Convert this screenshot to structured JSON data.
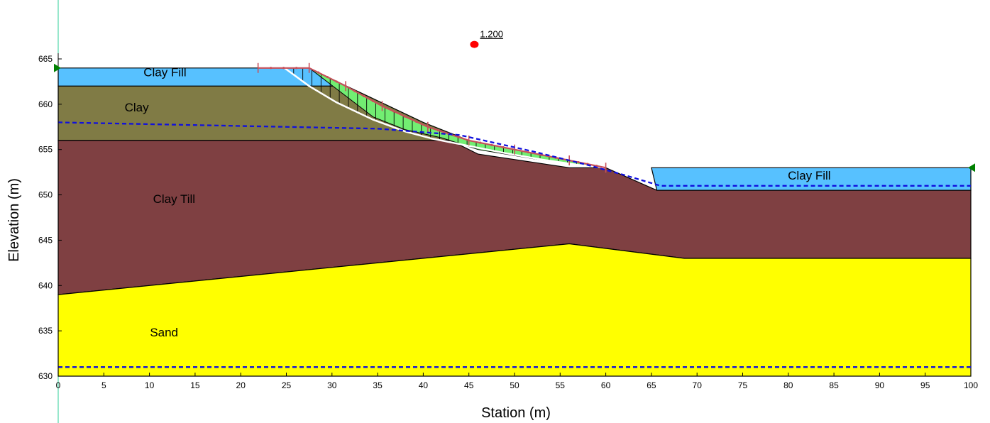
{
  "chart_data": {
    "type": "slope-stability-section",
    "xlabel": "Station (m)",
    "ylabel": "Elevation (m)",
    "xlim": [
      0,
      100
    ],
    "ylim": [
      630,
      665
    ],
    "x_ticks": [
      0,
      5,
      10,
      15,
      20,
      25,
      30,
      35,
      40,
      45,
      50,
      55,
      60,
      65,
      70,
      75,
      80,
      85,
      90,
      95,
      100
    ],
    "y_ticks": [
      630,
      635,
      640,
      645,
      650,
      655,
      660,
      665
    ],
    "factor_of_safety": {
      "label": "1.200",
      "x": 45.6,
      "y": 666.6,
      "color": "#ff0000"
    },
    "layers": [
      {
        "name": "Clay Fill",
        "color": "#57c1ff",
        "label_at": [
          11.7,
          663.1
        ],
        "polygon": [
          [
            0,
            664
          ],
          [
            27.5,
            664
          ],
          [
            31.6,
            662
          ],
          [
            0,
            662
          ]
        ]
      },
      {
        "name": "Clay Fill",
        "color": "#57c1ff",
        "label_at": [
          82.3,
          651.7
        ],
        "polygon": [
          [
            65,
            653
          ],
          [
            100,
            653
          ],
          [
            100,
            650.5
          ],
          [
            65.6,
            650.5
          ]
        ]
      },
      {
        "name": "Clay",
        "color": "#807b45",
        "label_at": [
          8.6,
          659.2
        ],
        "polygon": [
          [
            0,
            662
          ],
          [
            31.6,
            662
          ],
          [
            40,
            658
          ],
          [
            45,
            656
          ],
          [
            43,
            656
          ],
          [
            0,
            656
          ]
        ]
      },
      {
        "name": "Clay Till",
        "color": "#7f4042",
        "label_at": [
          12.7,
          649.1
        ],
        "polygon": [
          [
            0,
            656
          ],
          [
            43,
            656
          ],
          [
            46,
            654.5
          ],
          [
            56,
            653
          ],
          [
            60,
            653
          ],
          [
            65.6,
            650.5
          ],
          [
            100,
            650.5
          ],
          [
            100,
            643
          ],
          [
            68.6,
            643
          ],
          [
            56,
            644.6
          ],
          [
            0,
            639
          ]
        ]
      },
      {
        "name": "Sand",
        "color": "#ffff00",
        "label_at": [
          11.6,
          634.4
        ],
        "polygon": [
          [
            0,
            639
          ],
          [
            56,
            644.6
          ],
          [
            68.6,
            643
          ],
          [
            100,
            643
          ],
          [
            100,
            630
          ],
          [
            0,
            630
          ]
        ]
      }
    ],
    "sliding_mass": {
      "color": "#72ee72",
      "polygon": [
        [
          27.5,
          664
        ],
        [
          31.5,
          662
        ],
        [
          35.5,
          659.8
        ],
        [
          40.5,
          657.5
        ],
        [
          45,
          656
        ],
        [
          50,
          655
        ],
        [
          56,
          653.8
        ],
        [
          60,
          653
        ],
        [
          57,
          653.3
        ],
        [
          52,
          654
        ],
        [
          46,
          655
        ],
        [
          42,
          656.3
        ],
        [
          38,
          657.2
        ],
        [
          34.5,
          658.6
        ]
      ]
    },
    "slip_surface": {
      "color": "#ffffff",
      "points": [
        [
          24.8,
          664
        ],
        [
          27.5,
          662
        ],
        [
          30.5,
          660.2
        ],
        [
          34.5,
          658.3
        ],
        [
          38,
          657
        ],
        [
          41,
          656.2
        ],
        [
          44.5,
          655.5
        ],
        [
          49,
          654.6
        ],
        [
          53,
          653.9
        ],
        [
          57,
          653.3
        ],
        [
          60,
          653
        ]
      ]
    },
    "ground_surface": {
      "color": "#c8505a",
      "points": [
        [
          21.9,
          664
        ],
        [
          27.5,
          664
        ],
        [
          31.5,
          662
        ],
        [
          35.5,
          659.8
        ],
        [
          40.5,
          657.5
        ],
        [
          45,
          656
        ],
        [
          50,
          655
        ],
        [
          56,
          653.8
        ],
        [
          60,
          653
        ]
      ]
    },
    "piezometric_lines": [
      {
        "color": "#1010dd",
        "points": [
          [
            0,
            658
          ],
          [
            20,
            657.6
          ],
          [
            35,
            657.3
          ],
          [
            44,
            656.6
          ],
          [
            52,
            654.8
          ],
          [
            58,
            653.3
          ],
          [
            62,
            652.2
          ],
          [
            66,
            651
          ],
          [
            100,
            651
          ]
        ]
      },
      {
        "color": "#1010dd",
        "points": [
          [
            0,
            631
          ],
          [
            100,
            631
          ]
        ]
      }
    ],
    "markers": [
      {
        "shape": "triangle-right",
        "color": "#008000",
        "x": 0,
        "y": 664
      },
      {
        "shape": "triangle-left",
        "color": "#008000",
        "x": 100,
        "y": 653
      }
    ]
  }
}
